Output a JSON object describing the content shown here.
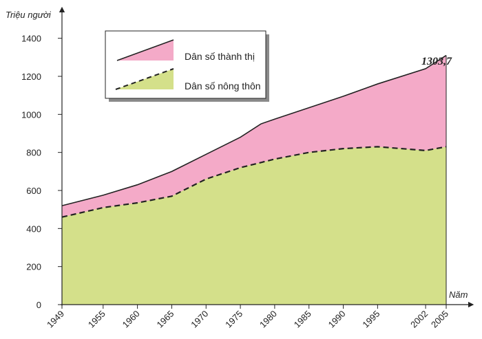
{
  "chart_data": {
    "type": "area",
    "stacked": true,
    "ylabel": "Triệu người",
    "xlabel": "Năm",
    "ylim": [
      0,
      1500
    ],
    "yticks": [
      0,
      200,
      400,
      600,
      800,
      1000,
      1200,
      1400
    ],
    "xticks": [
      1949,
      1955,
      1960,
      1965,
      1970,
      1975,
      1980,
      1985,
      1990,
      1995,
      2002,
      2005
    ],
    "series": [
      {
        "name": "Dân số nông thôn",
        "color": "#d4e08a",
        "line": "dashed",
        "points": [
          [
            1949,
            460
          ],
          [
            1955,
            510
          ],
          [
            1960,
            535
          ],
          [
            1965,
            570
          ],
          [
            1970,
            660
          ],
          [
            1975,
            720
          ],
          [
            1980,
            765
          ],
          [
            1985,
            800
          ],
          [
            1990,
            820
          ],
          [
            1995,
            830
          ],
          [
            2002,
            810
          ],
          [
            2005,
            830
          ]
        ]
      },
      {
        "name": "Dân số thành thị",
        "color": "#f4aac8",
        "line": "solid",
        "points": [
          [
            1949,
            520
          ],
          [
            1955,
            575
          ],
          [
            1960,
            630
          ],
          [
            1965,
            700
          ],
          [
            1970,
            790
          ],
          [
            1975,
            880
          ],
          [
            1978,
            950
          ],
          [
            1980,
            975
          ],
          [
            1985,
            1035
          ],
          [
            1990,
            1095
          ],
          [
            1995,
            1160
          ],
          [
            2002,
            1240
          ],
          [
            2005,
            1310
          ]
        ]
      }
    ],
    "annotation": {
      "text": "1303,7",
      "x": 2005,
      "y": 1310
    },
    "legend_position": "top-left"
  }
}
